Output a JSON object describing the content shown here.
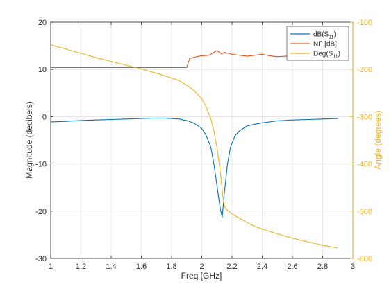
{
  "chart_data": {
    "type": "line",
    "xlabel": "Freq [GHz]",
    "ylabel": "Magnitude (decibels)",
    "y2label": "Angle (degrees)",
    "xlim": [
      1,
      3
    ],
    "ylim": [
      -30,
      20
    ],
    "y2lim": [
      -600,
      -100
    ],
    "xticks": [
      1,
      1.2,
      1.4,
      1.6,
      1.8,
      2,
      2.2,
      2.4,
      2.6,
      2.8,
      3
    ],
    "xtick_labels": [
      "1",
      "1.2",
      "1.4",
      "1.6",
      "1.8",
      "2",
      "2.2",
      "2.4",
      "2.6",
      "2.8",
      "3"
    ],
    "yticks": [
      -30,
      -20,
      -10,
      0,
      10,
      20
    ],
    "ytick_labels": [
      "-30",
      "-20",
      "-10",
      "0",
      "10",
      "20"
    ],
    "y2ticks": [
      -600,
      -500,
      -400,
      -300,
      -200,
      -100
    ],
    "y2tick_labels": [
      "-600",
      "-500",
      "-400",
      "-300",
      "-200",
      "-100"
    ],
    "grid": true,
    "legend_position": "top-right",
    "legend": [
      {
        "base": "dB(S",
        "sub": "11",
        "tail": ")",
        "color": "#0072BD"
      },
      {
        "base": "NF [dB]",
        "sub": "",
        "tail": "",
        "color": "#D95319"
      },
      {
        "base": "Deg(S",
        "sub": "11",
        "tail": ")",
        "color": "#EDB120"
      }
    ],
    "series": [
      {
        "axis": "left",
        "color": "#0072BD",
        "x": [
          1.0,
          1.1,
          1.2,
          1.3,
          1.4,
          1.5,
          1.6,
          1.7,
          1.75,
          1.8,
          1.85,
          1.9,
          1.95,
          2.0,
          2.03,
          2.06,
          2.08,
          2.1,
          2.12,
          2.135,
          2.15,
          2.17,
          2.19,
          2.22,
          2.25,
          2.3,
          2.35,
          2.4,
          2.5,
          2.6,
          2.7,
          2.8,
          2.9
        ],
        "y": [
          -1.1,
          -1.0,
          -0.8,
          -0.7,
          -0.6,
          -0.5,
          -0.4,
          -0.3,
          -0.3,
          -0.4,
          -0.5,
          -0.8,
          -1.4,
          -2.5,
          -4.0,
          -6.5,
          -10.0,
          -14.5,
          -19.0,
          -21.3,
          -16.0,
          -10.0,
          -6.5,
          -4.0,
          -3.0,
          -2.0,
          -1.6,
          -1.3,
          -0.9,
          -0.7,
          -0.6,
          -0.5,
          -0.4
        ]
      },
      {
        "axis": "left",
        "color": "#D95319",
        "x": [
          1.0,
          1.2,
          1.4,
          1.6,
          1.8,
          1.9,
          1.92,
          1.95,
          2.0,
          2.05,
          2.08,
          2.1,
          2.13,
          2.15,
          2.2,
          2.25,
          2.3,
          2.35,
          2.4,
          2.45,
          2.5,
          2.6,
          2.7,
          2.8,
          2.9
        ],
        "y": [
          10.4,
          10.4,
          10.4,
          10.4,
          10.4,
          10.4,
          12.3,
          12.6,
          12.9,
          13.0,
          13.6,
          14.0,
          13.3,
          13.6,
          13.2,
          13.0,
          12.8,
          13.0,
          13.2,
          12.9,
          12.7,
          12.9,
          12.8,
          12.9,
          12.9
        ]
      },
      {
        "axis": "right",
        "color": "#EDB120",
        "x": [
          1.0,
          1.1,
          1.2,
          1.3,
          1.4,
          1.5,
          1.6,
          1.7,
          1.8,
          1.85,
          1.9,
          1.95,
          2.0,
          2.03,
          2.06,
          2.08,
          2.1,
          2.12,
          2.13,
          2.14,
          2.15,
          2.17,
          2.2,
          2.25,
          2.3,
          2.35,
          2.4,
          2.5,
          2.6,
          2.7,
          2.8,
          2.9
        ],
        "y": [
          -148,
          -157,
          -166,
          -175,
          -183,
          -191,
          -199,
          -208,
          -218,
          -224,
          -233,
          -245,
          -262,
          -280,
          -305,
          -330,
          -365,
          -410,
          -440,
          -470,
          -490,
          -498,
          -506,
          -515,
          -524,
          -532,
          -538,
          -548,
          -557,
          -565,
          -572,
          -578
        ]
      }
    ]
  }
}
